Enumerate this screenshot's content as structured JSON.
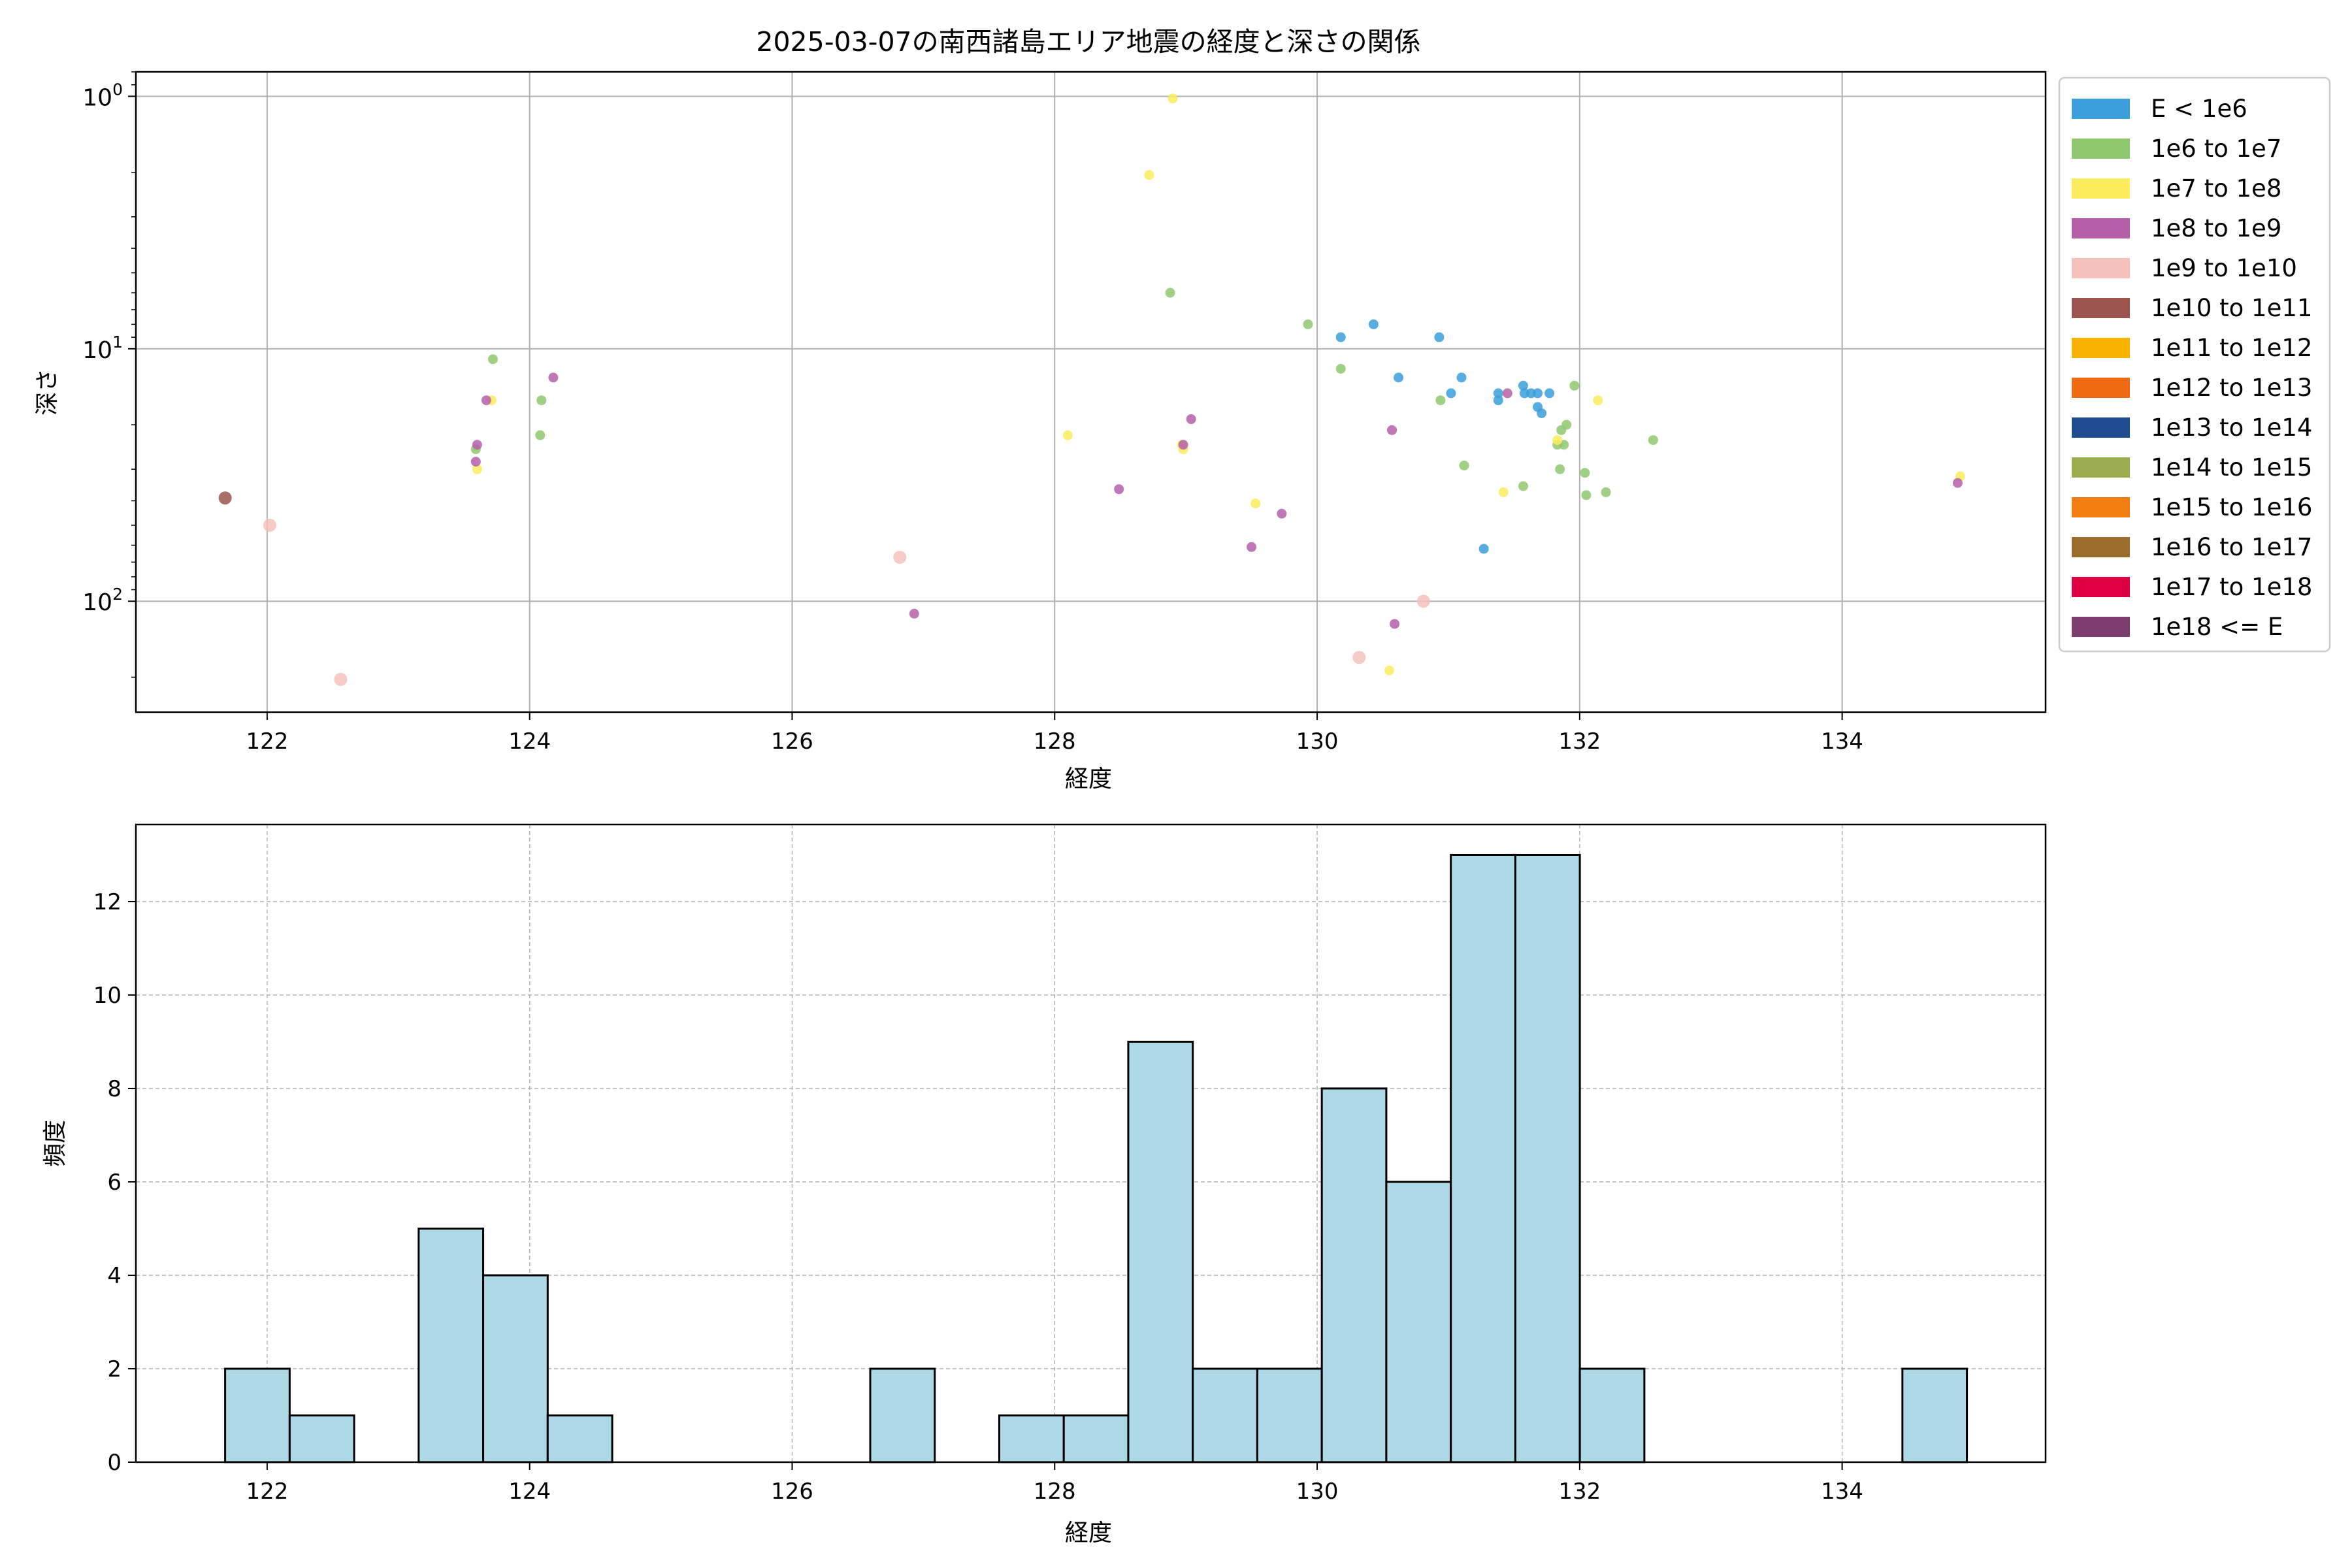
{
  "chart_data": [
    {
      "type": "scatter",
      "title": "2025-03-07の南西諸島エリア地震の経度と深さの関係",
      "xlabel": "経度",
      "ylabel": "深さ",
      "xlim": [
        121.0,
        135.55
      ],
      "ylim": [
        275,
        0.8
      ],
      "yscale": "log",
      "y_inverted": true,
      "xticks": [
        "122",
        "124",
        "126",
        "128",
        "130",
        "132",
        "134"
      ],
      "xtick_values": [
        122,
        124,
        126,
        128,
        130,
        132,
        134
      ],
      "yticks": [
        {
          "value": 1,
          "base": "10",
          "exp": "0"
        },
        {
          "value": 10,
          "base": "10",
          "exp": "1"
        },
        {
          "value": 100,
          "base": "10",
          "exp": "2"
        }
      ],
      "grid": true,
      "legend": {
        "placement": "outside upper right",
        "entries": [
          {
            "label": "E < 1e6",
            "color": "#3a9fdb"
          },
          {
            "label": "1e6 to 1e7",
            "color": "#8fc86f"
          },
          {
            "label": "1e7 to 1e8",
            "color": "#fbec5d"
          },
          {
            "label": "1e8 to 1e9",
            "color": "#b55fa8"
          },
          {
            "label": "1e9 to 1e10",
            "color": "#f5c1bb"
          },
          {
            "label": "1e10 to 1e11",
            "color": "#9b534e"
          },
          {
            "label": "1e11 to 1e12",
            "color": "#f7b300"
          },
          {
            "label": "1e12 to 1e13",
            "color": "#ee6b10"
          },
          {
            "label": "1e13 to 1e14",
            "color": "#1d4b8f"
          },
          {
            "label": "1e14 to 1e15",
            "color": "#9aae4f"
          },
          {
            "label": "1e15 to 1e16",
            "color": "#f17c0f"
          },
          {
            "label": "1e16 to 1e17",
            "color": "#9a6d2c"
          },
          {
            "label": "1e17 to 1e18",
            "color": "#dc0040"
          },
          {
            "label": "1e18 <= E",
            "color": "#7a3d6d"
          }
        ]
      },
      "series": [
        {
          "class": 0,
          "points": [
            [
              130.18,
              9
            ],
            [
              130.43,
              8
            ],
            [
              130.93,
              9
            ],
            [
              130.62,
              13
            ],
            [
              131.02,
              15
            ],
            [
              131.1,
              13
            ],
            [
              131.38,
              15
            ],
            [
              131.38,
              16
            ],
            [
              131.57,
              14
            ],
            [
              131.58,
              15
            ],
            [
              131.63,
              15
            ],
            [
              131.68,
              15
            ],
            [
              131.68,
              17
            ],
            [
              131.71,
              18
            ],
            [
              131.77,
              15
            ],
            [
              131.27,
              62
            ]
          ]
        },
        {
          "class": 1,
          "points": [
            [
              123.72,
              11
            ],
            [
              123.59,
              25
            ],
            [
              124.09,
              16
            ],
            [
              124.08,
              22
            ],
            [
              128.88,
              6
            ],
            [
              129.93,
              8
            ],
            [
              130.18,
              12
            ],
            [
              130.94,
              16
            ],
            [
              131.12,
              29
            ],
            [
              131.57,
              35
            ],
            [
              131.86,
              21
            ],
            [
              131.83,
              24
            ],
            [
              131.88,
              24
            ],
            [
              131.9,
              20
            ],
            [
              131.96,
              14
            ],
            [
              132.04,
              31
            ],
            [
              132.05,
              38
            ],
            [
              132.2,
              37
            ],
            [
              132.56,
              23
            ],
            [
              131.85,
              30
            ]
          ]
        },
        {
          "class": 2,
          "points": [
            [
              128.9,
              1.02
            ],
            [
              128.72,
              2.05
            ],
            [
              123.6,
              30
            ],
            [
              123.71,
              16
            ],
            [
              128.1,
              22
            ],
            [
              128.97,
              24
            ],
            [
              128.98,
              25
            ],
            [
              129.53,
              41
            ],
            [
              130.55,
              188
            ],
            [
              131.42,
              37
            ],
            [
              131.83,
              23
            ],
            [
              132.14,
              16
            ],
            [
              134.9,
              32
            ]
          ]
        },
        {
          "class": 3,
          "points": [
            [
              123.6,
              24
            ],
            [
              123.59,
              28
            ],
            [
              123.67,
              16
            ],
            [
              124.18,
              13
            ],
            [
              126.93,
              112
            ],
            [
              128.49,
              36
            ],
            [
              128.98,
              24
            ],
            [
              129.04,
              19
            ],
            [
              129.5,
              61
            ],
            [
              129.73,
              45
            ],
            [
              130.57,
              21
            ],
            [
              131.45,
              15
            ],
            [
              130.59,
              123
            ],
            [
              134.88,
              34
            ]
          ]
        },
        {
          "class": 4,
          "points": [
            [
              122.02,
              50
            ],
            [
              122.56,
              204
            ],
            [
              126.82,
              67
            ],
            [
              130.32,
              167
            ],
            [
              130.81,
              100
            ]
          ]
        },
        {
          "class": 5,
          "points": [
            [
              121.68,
              39
            ]
          ]
        }
      ]
    },
    {
      "type": "bar",
      "subtype": "histogram",
      "xlabel": "経度",
      "ylabel": "頻度",
      "bin_start": 121.68,
      "bin_width": 0.4915,
      "values": [
        2,
        1,
        0,
        5,
        4,
        1,
        0,
        0,
        0,
        0,
        2,
        0,
        1,
        1,
        9,
        2,
        2,
        8,
        6,
        13,
        13,
        2,
        0,
        0,
        0,
        0,
        2
      ],
      "xlim": [
        121.0,
        135.55
      ],
      "ylim": [
        0,
        13.65
      ],
      "xticks": [
        "122",
        "124",
        "126",
        "128",
        "130",
        "132",
        "134"
      ],
      "xtick_values": [
        122,
        124,
        126,
        128,
        130,
        132,
        134
      ],
      "yticks": [
        "0",
        "2",
        "4",
        "6",
        "8",
        "10",
        "12"
      ],
      "ytick_values": [
        0,
        2,
        4,
        6,
        8,
        10,
        12
      ],
      "bar_color": "#add8e6",
      "edge_color": "#000000",
      "grid": true
    }
  ]
}
